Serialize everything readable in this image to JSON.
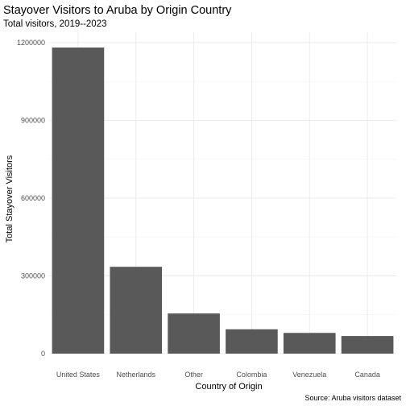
{
  "chart_data": {
    "type": "bar",
    "title": "Stayover Visitors to Aruba by Origin Country",
    "subtitle": "Total visitors, 2019--2023",
    "xlabel": "Country of Origin",
    "ylabel": "Total Stayover Visitors",
    "caption": "Source: Aruba visitors dataset",
    "categories": [
      "United States",
      "Netherlands",
      "Other",
      "Colombia",
      "Venezuela",
      "Canada"
    ],
    "values": [
      1181000,
      335000,
      155000,
      94000,
      80000,
      68000
    ],
    "ylim": [
      0,
      1240000
    ],
    "yticks": [
      0,
      300000,
      600000,
      900000,
      1200000
    ],
    "ytick_labels": [
      "0",
      "300000",
      "600000",
      "900000",
      "1200000"
    ],
    "grid": true,
    "bar_color": "#595959",
    "grid_color": "#ebebeb"
  }
}
